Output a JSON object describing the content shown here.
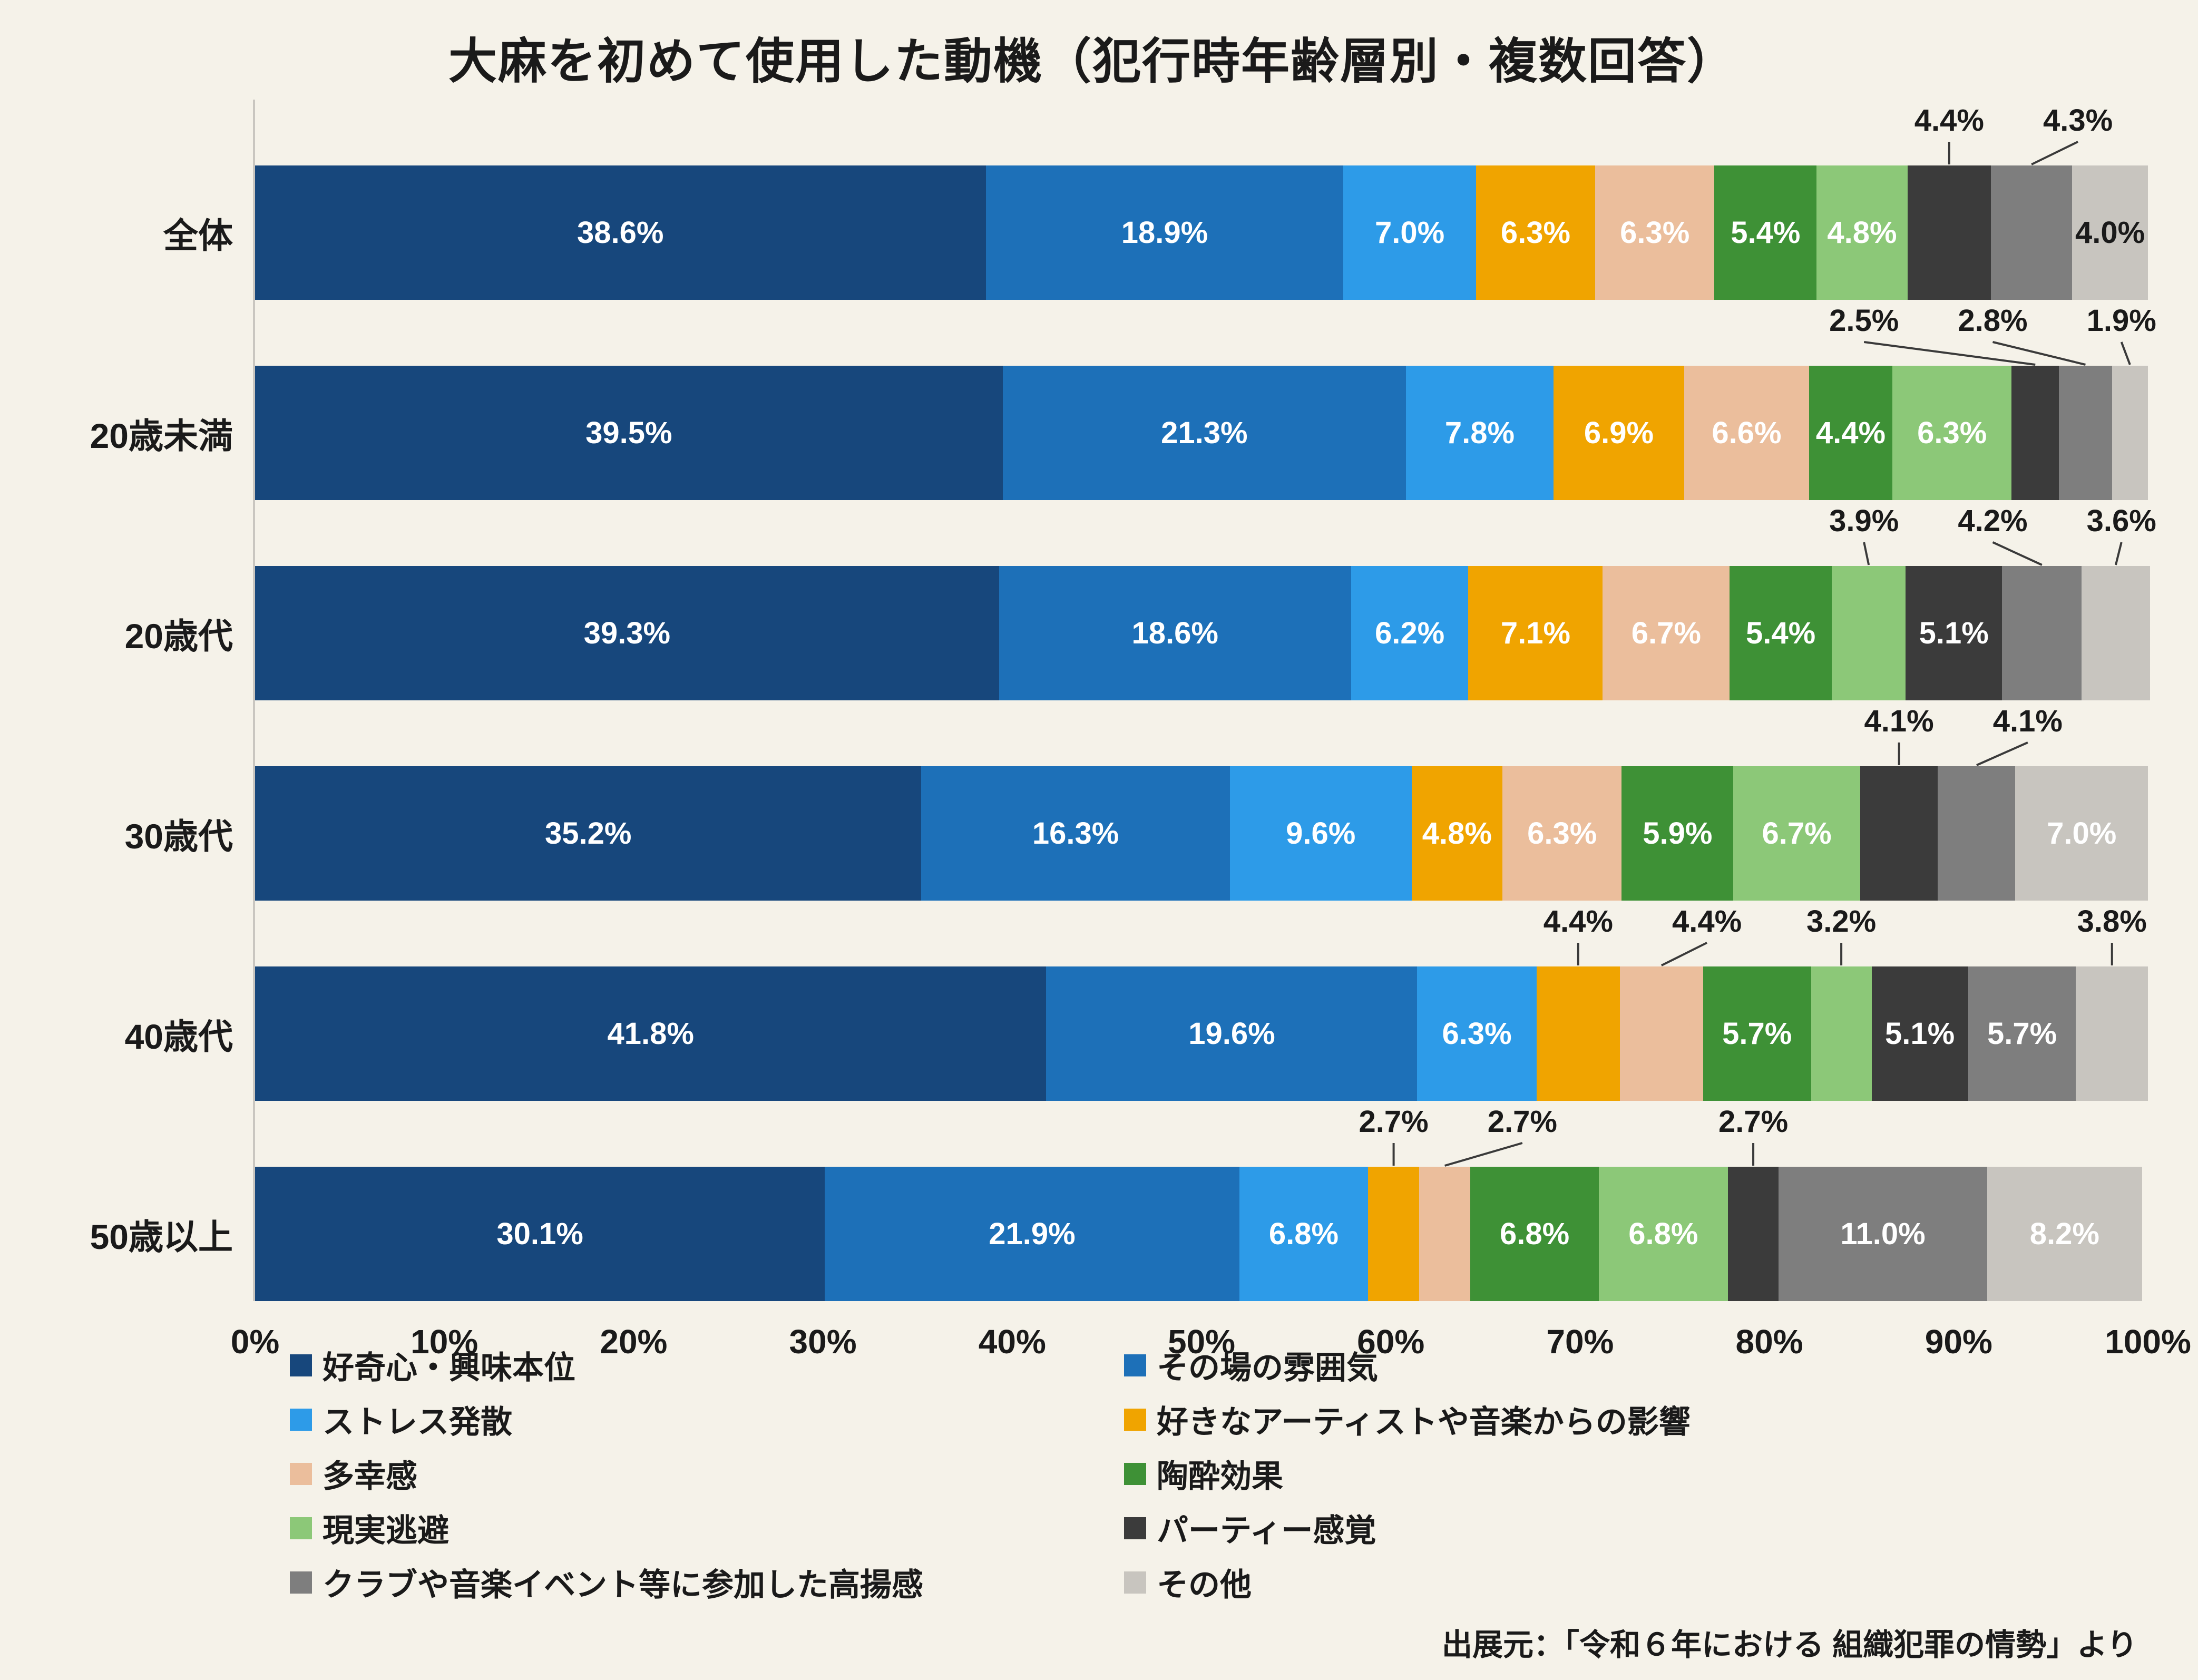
{
  "title": "大麻を初めて使用した動機（犯行時年齢層別・複数回答）",
  "source": "出展元：「令和６年における 組織犯罪の情勢」より",
  "colors": {
    "background": "#f5f2e9",
    "text": "#1a1a1a",
    "axis_line": "#c9c6c0",
    "leader_line": "#3a3a3a"
  },
  "chart_data": {
    "type": "bar",
    "orientation": "horizontal",
    "stacked": true,
    "unit": "%",
    "title": "大麻を初めて使用した動機（犯行時年齢層別・複数回答）",
    "categories": [
      "全体",
      "20歳未満",
      "20歳代",
      "30歳代",
      "40歳代",
      "50歳以上"
    ],
    "series": [
      {
        "name": "好奇心・興味本位",
        "color": "#17477c",
        "values": [
          38.6,
          39.5,
          39.3,
          35.2,
          41.8,
          30.1
        ]
      },
      {
        "name": "その場の雰囲気",
        "color": "#1d70b8",
        "values": [
          18.9,
          21.3,
          18.6,
          16.3,
          19.6,
          21.9
        ]
      },
      {
        "name": "ストレス発散",
        "color": "#2d9be8",
        "values": [
          7.0,
          7.8,
          6.2,
          9.6,
          6.3,
          6.8
        ]
      },
      {
        "name": "好きなアーティストや音楽からの影響",
        "color": "#f0a400",
        "values": [
          6.3,
          6.9,
          7.1,
          4.8,
          4.4,
          2.7
        ]
      },
      {
        "name": "多幸感",
        "color": "#ebbe9c",
        "values": [
          6.3,
          6.6,
          6.7,
          6.3,
          4.4,
          2.7
        ]
      },
      {
        "name": "陶酔効果",
        "color": "#3e9136",
        "values": [
          5.4,
          4.4,
          5.4,
          5.9,
          5.7,
          6.8
        ]
      },
      {
        "name": "現実逃避",
        "color": "#8cc878",
        "values": [
          4.8,
          6.3,
          3.9,
          6.7,
          3.2,
          6.8
        ]
      },
      {
        "name": "パーティー感覚",
        "color": "#3b3b3b",
        "values": [
          4.4,
          2.5,
          5.1,
          4.1,
          5.1,
          2.7
        ]
      },
      {
        "name": "クラブや音楽イベント等に参加した高揚感",
        "color": "#7e7e7e",
        "values": [
          4.3,
          2.8,
          4.2,
          4.1,
          5.7,
          11.0
        ]
      },
      {
        "name": "その他",
        "color": "#c8c5bf",
        "values": [
          4.0,
          1.9,
          3.6,
          7.0,
          3.8,
          8.2
        ]
      }
    ],
    "placements": [
      [
        "in",
        "in",
        "in",
        "in",
        "in",
        "in",
        "in",
        "out",
        "out",
        "in-dark"
      ],
      [
        "in",
        "in",
        "in",
        "in",
        "in",
        "in",
        "in",
        "out",
        "out",
        "out"
      ],
      [
        "in",
        "in",
        "in",
        "in",
        "in",
        "in",
        "out",
        "in",
        "out",
        "out"
      ],
      [
        "in",
        "in",
        "in",
        "in",
        "in",
        "in",
        "in",
        "out",
        "out",
        "in"
      ],
      [
        "in",
        "in",
        "in",
        "out",
        "out",
        "in",
        "out",
        "in",
        "in",
        "out"
      ],
      [
        "in",
        "in",
        "in",
        "out",
        "out",
        "in",
        "in",
        "out",
        "in",
        "in"
      ]
    ],
    "xlim": [
      0,
      100
    ],
    "x_tick_labels": [
      "0%",
      "10%",
      "20%",
      "30%",
      "40%",
      "50%",
      "60%",
      "70%",
      "80%",
      "90%",
      "100%"
    ],
    "grid": false,
    "legend_position": "bottom"
  }
}
